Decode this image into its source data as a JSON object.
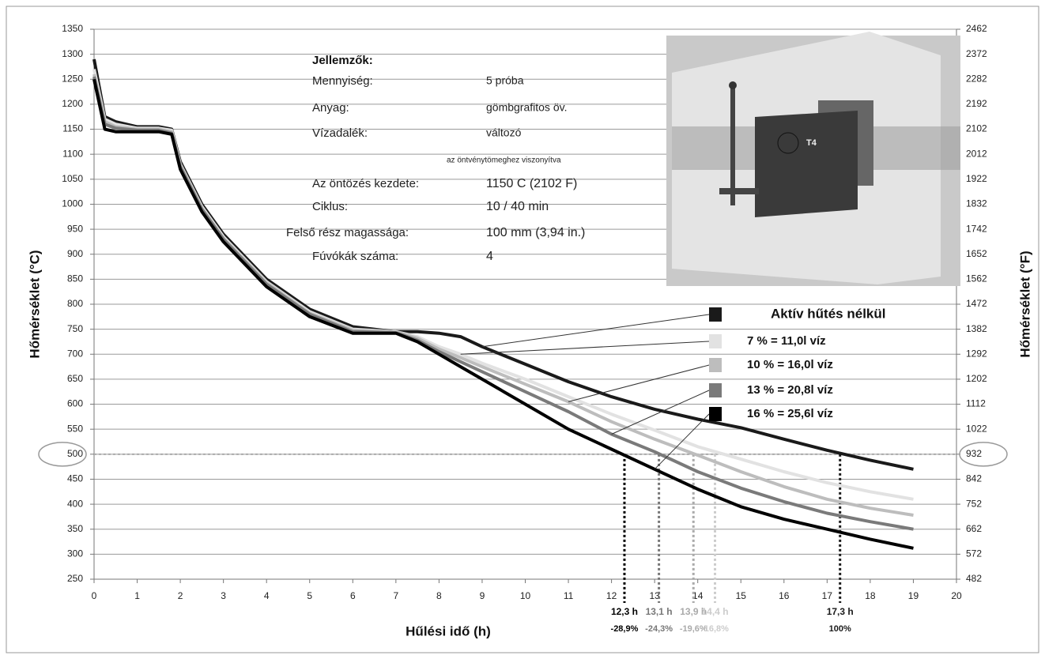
{
  "chart_data": {
    "type": "line",
    "xlabel": "Hűlési idő (h)",
    "ylabel": "Hőmérséklet (°C)",
    "y2label": "Hőmérséklet (°F)",
    "xlim": [
      0,
      20
    ],
    "xticks": [
      0,
      1,
      2,
      3,
      4,
      5,
      6,
      7,
      8,
      9,
      10,
      11,
      12,
      13,
      14,
      15,
      16,
      17,
      18,
      19,
      20
    ],
    "ylim": [
      250,
      1350
    ],
    "yticks": [
      250,
      300,
      350,
      400,
      450,
      500,
      550,
      600,
      650,
      700,
      750,
      800,
      850,
      900,
      950,
      1000,
      1050,
      1100,
      1150,
      1200,
      1250,
      1300,
      1350
    ],
    "y2lim": [
      482,
      2462
    ],
    "y2ticks": [
      482,
      572,
      662,
      752,
      842,
      932,
      1022,
      1112,
      1202,
      1292,
      1382,
      1472,
      1562,
      1652,
      1742,
      1832,
      1922,
      2012,
      2102,
      2192,
      2282,
      2372,
      2462
    ],
    "grid": true,
    "hline": 500,
    "x": [
      0,
      0.25,
      0.5,
      1,
      1.5,
      1.8,
      2,
      2.5,
      3,
      4,
      5,
      6,
      7,
      7.5,
      8,
      8.5,
      9,
      10,
      11,
      12,
      13,
      14,
      15,
      16,
      17,
      18,
      19
    ],
    "series": [
      {
        "name": "Aktív hűtés nélkül",
        "color": "#1a1a1a",
        "values": [
          1290,
          1175,
          1165,
          1155,
          1155,
          1150,
          1085,
          1000,
          940,
          850,
          790,
          755,
          745,
          745,
          742,
          735,
          715,
          680,
          645,
          615,
          590,
          570,
          553,
          530,
          508,
          488,
          470
        ]
      },
      {
        "name": "7 % = 11,0l víz",
        "color": "#e2e2e2",
        "values": [
          1270,
          1170,
          1160,
          1152,
          1152,
          1148,
          1080,
          995,
          935,
          845,
          785,
          750,
          745,
          735,
          715,
          700,
          682,
          650,
          615,
          580,
          548,
          515,
          490,
          465,
          443,
          425,
          410
        ]
      },
      {
        "name": "10 % = 16,0l víz",
        "color": "#bdbdbd",
        "values": [
          1260,
          1165,
          1155,
          1150,
          1150,
          1145,
          1078,
          992,
          932,
          843,
          782,
          748,
          745,
          732,
          710,
          693,
          675,
          640,
          605,
          565,
          530,
          498,
          465,
          435,
          410,
          392,
          378
        ]
      },
      {
        "name": "13 % = 20,8l víz",
        "color": "#7a7a7a",
        "values": [
          1255,
          1160,
          1152,
          1148,
          1148,
          1142,
          1075,
          990,
          930,
          840,
          780,
          745,
          743,
          728,
          705,
          685,
          665,
          625,
          585,
          540,
          505,
          465,
          432,
          405,
          382,
          365,
          350
        ]
      },
      {
        "name": "16 % = 25,6l víz",
        "color": "#000000",
        "values": [
          1250,
          1150,
          1145,
          1145,
          1145,
          1140,
          1070,
          985,
          925,
          835,
          775,
          742,
          742,
          725,
          700,
          675,
          650,
          600,
          550,
          510,
          470,
          430,
          395,
          370,
          350,
          330,
          312
        ]
      }
    ],
    "markers": [
      {
        "x": 12.3,
        "label": "12,3 h",
        "sublabel": "-28,9%",
        "color": "#000000"
      },
      {
        "x": 13.1,
        "label": "13,1 h",
        "sublabel": "-24,3%",
        "color": "#777777"
      },
      {
        "x": 13.9,
        "label": "13,9 h",
        "sublabel": "-19,6%",
        "color": "#aaaaaa"
      },
      {
        "x": 14.4,
        "label": "14,4 h",
        "sublabel": "-16,8%",
        "color": "#cccccc"
      },
      {
        "x": 17.3,
        "label": "17,3 h",
        "sublabel": "100%",
        "color": "#1a1a1a"
      }
    ],
    "specs": {
      "heading": "Jellemzők:",
      "rows": [
        [
          "Mennyiség:",
          "5 próba"
        ],
        [
          "Anyag:",
          "gömbgrafitos öv."
        ],
        [
          "Vízadalék:",
          "változó"
        ],
        [
          "Az öntözés kezdete:",
          "1150 C (2102 F)"
        ],
        [
          "Ciklus:",
          "10 / 40 min"
        ],
        [
          "Felső rész magassága:",
          "100 mm (3,94 in.)"
        ],
        [
          "Fúvókák száma:",
          "4"
        ]
      ],
      "note": "az öntvénytömeghez viszonyítva"
    },
    "image_label": "T4"
  }
}
